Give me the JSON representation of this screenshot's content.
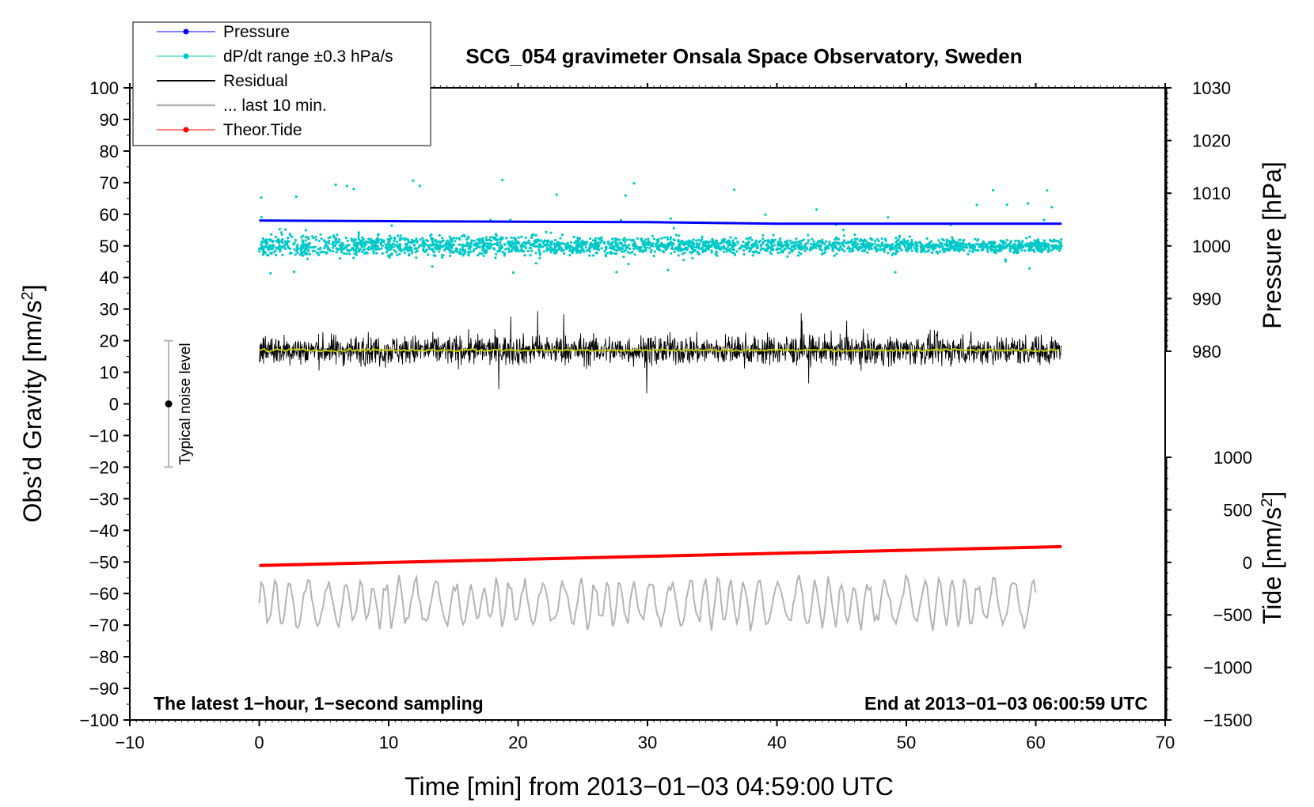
{
  "chart_data": {
    "type": "line",
    "title": "SCG_054 gravimeter Onsala Space Observatory, Sweden",
    "xlabel": "Time [min] from 2013−01−03 04:59:00 UTC",
    "ylabel_left": "Obs’d Gravity [nm/s",
    "ylabel_left_sup": "2",
    "ylabel_left_end": "]",
    "ylabel_right_top": "Pressure [hPa]",
    "ylabel_right_bottom": "Tide [nm/s",
    "ylabel_right_bottom_sup": "2",
    "ylabel_right_bottom_end": "]",
    "xlim": [
      -10,
      70
    ],
    "ylim_left": [
      -100,
      100
    ],
    "ylim_pressure": [
      980,
      1030
    ],
    "ylim_tide": [
      -1500,
      1000
    ],
    "x_ticks": [
      "−10",
      "0",
      "10",
      "20",
      "30",
      "40",
      "50",
      "60",
      "70"
    ],
    "x_tick_values": [
      -10,
      0,
      10,
      20,
      30,
      40,
      50,
      60,
      70
    ],
    "y_left_ticks": [
      "100",
      "90",
      "80",
      "70",
      "60",
      "50",
      "40",
      "30",
      "20",
      "10",
      "0",
      "−10",
      "−20",
      "−30",
      "−40",
      "−50",
      "−60",
      "−70",
      "−80",
      "−90",
      "−100"
    ],
    "y_left_tick_values": [
      100,
      90,
      80,
      70,
      60,
      50,
      40,
      30,
      20,
      10,
      0,
      -10,
      -20,
      -30,
      -40,
      -50,
      -60,
      -70,
      -80,
      -90,
      -100
    ],
    "y_pressure_ticks": [
      "1030",
      "1020",
      "1010",
      "1000",
      "990",
      "980"
    ],
    "y_pressure_tick_values": [
      1030,
      1020,
      1010,
      1000,
      990,
      980
    ],
    "y_tide_ticks": [
      "1000",
      "500",
      "0",
      "−500",
      "−1000",
      "−1500"
    ],
    "y_tide_tick_values": [
      1000,
      500,
      0,
      -500,
      -1000,
      -1500
    ],
    "legend": [
      {
        "name": "Pressure",
        "color": "#0000ff"
      },
      {
        "name": "dP/dt range ±0.3 hPa/s",
        "color": "#00c8c8"
      },
      {
        "name": "Residual",
        "color": "#000000"
      },
      {
        "name": "... last 10 min.",
        "color": "#b4b4b4"
      },
      {
        "name": "Theor.Tide",
        "color": "#ff0000"
      }
    ],
    "series": [
      {
        "name": "Pressure",
        "axis": "pressure",
        "color": "#0000ff",
        "x": [
          0,
          10,
          20,
          30,
          40,
          50,
          62
        ],
        "values": [
          1004.8,
          1004.7,
          1004.6,
          1004.5,
          1004.2,
          1004.2,
          1004.2
        ]
      },
      {
        "name": "dP/dt range ±0.3 hPa/s",
        "axis": "left",
        "color": "#00c8c8",
        "x_range": [
          0,
          62
        ],
        "center": 50,
        "spread": 6
      },
      {
        "name": "Residual",
        "axis": "left",
        "color": "#000000",
        "x_range": [
          0,
          62
        ],
        "center": 17,
        "spread": 9
      },
      {
        "name": "Residual (smoothed)",
        "axis": "left",
        "color": "#c8c800",
        "x_range": [
          0,
          62
        ],
        "center": 17
      },
      {
        "name": "... last 10 min.",
        "axis": "left",
        "color": "#b4b4b4",
        "x_range": [
          0,
          60
        ],
        "center": -63,
        "spread": 8
      },
      {
        "name": "Theor.Tide",
        "axis": "tide",
        "color": "#ff0000",
        "x": [
          0,
          62
        ],
        "values": [
          -30,
          150
        ]
      }
    ],
    "noise_marker": {
      "label": "Typical noise level",
      "x": -7,
      "center": 0,
      "range": [
        -20,
        20
      ]
    },
    "annotation_left": "The latest 1−hour, 1−second sampling",
    "annotation_right": "End at 2013−01−03 06:00:59 UTC"
  }
}
